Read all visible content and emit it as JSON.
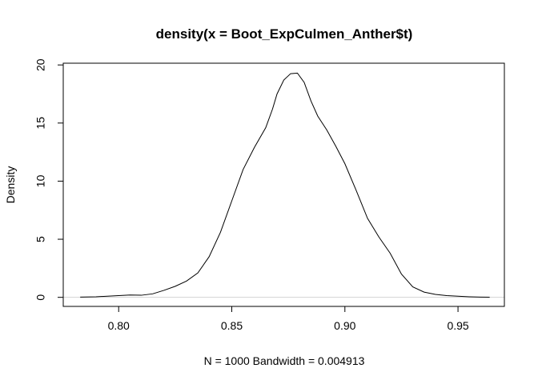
{
  "chart_data": {
    "type": "line",
    "title": "density(x = Boot_ExpCulmen_Anther$t)",
    "xlabel": "N = 1000   Bandwidth = 0.004913",
    "ylabel": "Density",
    "xlim": [
      0.7755,
      0.9705
    ],
    "ylim": [
      -0.78,
      20.15
    ],
    "x_ticks": [
      0.8,
      0.85,
      0.9,
      0.95
    ],
    "x_tick_labels": [
      "0.80",
      "0.85",
      "0.90",
      "0.95"
    ],
    "y_ticks": [
      0,
      5,
      10,
      15,
      20
    ],
    "y_tick_labels": [
      "0",
      "5",
      "10",
      "15",
      "20"
    ],
    "grid": false,
    "legend": "none",
    "colors": {
      "line": "#000000",
      "zero_line": "#d3d3d3"
    },
    "series": [
      {
        "x": [
          0.783,
          0.79,
          0.795,
          0.8,
          0.805,
          0.81,
          0.815,
          0.82,
          0.825,
          0.83,
          0.835,
          0.84,
          0.845,
          0.85,
          0.855,
          0.86,
          0.865,
          0.868,
          0.87,
          0.873,
          0.876,
          0.879,
          0.882,
          0.885,
          0.888,
          0.892,
          0.896,
          0.9,
          0.905,
          0.91,
          0.915,
          0.92,
          0.925,
          0.93,
          0.935,
          0.94,
          0.945,
          0.95,
          0.955,
          0.96,
          0.964
        ],
        "y": [
          0.02,
          0.05,
          0.1,
          0.15,
          0.2,
          0.18,
          0.3,
          0.6,
          0.95,
          1.4,
          2.1,
          3.5,
          5.6,
          8.3,
          11.0,
          12.9,
          14.6,
          16.2,
          17.5,
          18.7,
          19.25,
          19.3,
          18.5,
          16.9,
          15.6,
          14.4,
          13.0,
          11.5,
          9.2,
          6.8,
          5.2,
          3.8,
          2.0,
          0.9,
          0.45,
          0.25,
          0.15,
          0.1,
          0.05,
          0.02,
          0.01
        ]
      }
    ]
  }
}
